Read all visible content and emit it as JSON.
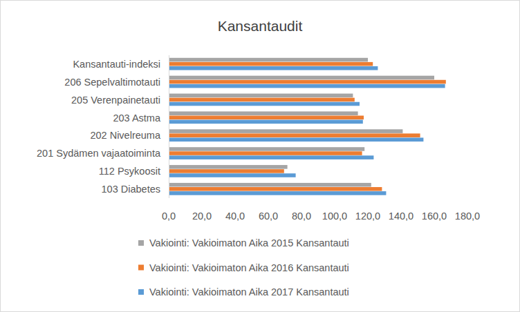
{
  "chart_data": {
    "type": "bar",
    "orientation": "horizontal",
    "title": "Kansantaudit",
    "categories": [
      "Kansantauti-indeksi",
      "206 Sepelvaltimotauti",
      "205 Verenpainetauti",
      "203 Astma",
      "202 Nivelreuma",
      "201 Sydämen vajaatoiminta",
      "112 Psykoosit",
      "103 Diabetes"
    ],
    "series": [
      {
        "name": "Vakiointi: Vakioimaton Aika 2015 Kansantauti",
        "color": "#a5a5a5",
        "values": [
          120.0,
          160.0,
          111.0,
          114.0,
          141.0,
          118.0,
          71.5,
          122.0
        ]
      },
      {
        "name": "Vakiointi: Vakioimaton Aika 2016 Kansantauti",
        "color": "#ed7d31",
        "values": [
          123.0,
          167.0,
          112.0,
          117.5,
          151.5,
          116.5,
          69.5,
          128.5
        ]
      },
      {
        "name": "Vakiointi: Vakioimaton Aika 2017 Kansantauti",
        "color": "#5b9bd5",
        "values": [
          126.0,
          166.5,
          115.0,
          117.0,
          153.5,
          123.5,
          76.5,
          131.0
        ]
      }
    ],
    "xlim": [
      0,
      180
    ],
    "xticks": [
      {
        "value": 0,
        "label": "0,0"
      },
      {
        "value": 20,
        "label": "20,0"
      },
      {
        "value": 40,
        "label": "40,0"
      },
      {
        "value": 60,
        "label": "60,0"
      },
      {
        "value": 80,
        "label": "80,0"
      },
      {
        "value": 100,
        "label": "100,0"
      },
      {
        "value": 120,
        "label": "120,0"
      },
      {
        "value": 140,
        "label": "140,0"
      },
      {
        "value": 160,
        "label": "160,0"
      },
      {
        "value": 180,
        "label": "180,0"
      }
    ],
    "grid": false,
    "legend": "bottom"
  }
}
